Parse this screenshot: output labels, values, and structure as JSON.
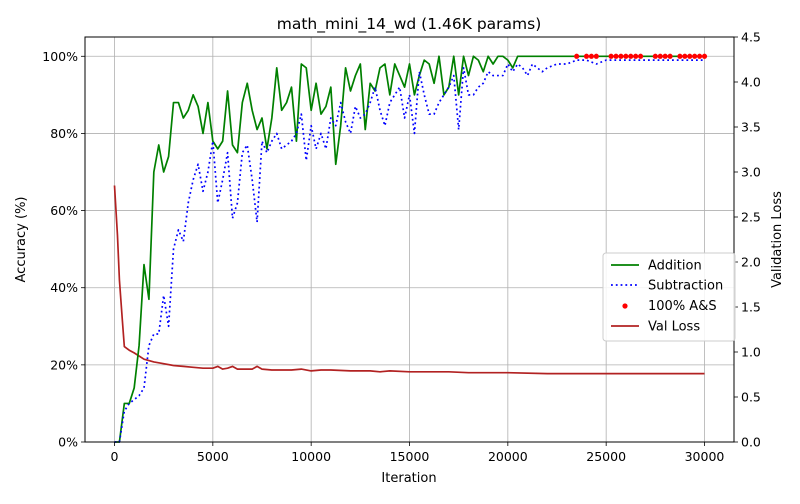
{
  "chart_data": {
    "type": "line",
    "title": "math_mini_14_wd (1.46K params)",
    "xlabel": "Iteration",
    "ylabel_left": "Accuracy (%)",
    "ylabel_right": "Validation Loss",
    "xlim": [
      -1500,
      31500
    ],
    "ylim_left": [
      0,
      105
    ],
    "ylim_right": [
      0,
      4.5
    ],
    "x_ticks": [
      0,
      5000,
      10000,
      15000,
      20000,
      25000,
      30000
    ],
    "x_tick_labels": [
      "0",
      "5000",
      "10000",
      "15000",
      "20000",
      "25000",
      "30000"
    ],
    "y_left_ticks": [
      0,
      20,
      40,
      60,
      80,
      100
    ],
    "y_left_tick_labels": [
      "0%",
      "20%",
      "40%",
      "60%",
      "80%",
      "100%"
    ],
    "y_right_ticks": [
      0,
      0.5,
      1.0,
      1.5,
      2.0,
      2.5,
      3.0,
      3.5,
      4.0,
      4.5
    ],
    "y_right_tick_labels": [
      "0.0",
      "0.5",
      "1.0",
      "1.5",
      "2.0",
      "2.5",
      "3.0",
      "3.5",
      "4.0",
      "4.5"
    ],
    "grid": true,
    "legend_position": "center-right",
    "series": [
      {
        "name": "Addition",
        "axis": "left",
        "style": "solid",
        "color": "#008000",
        "x": [
          0,
          250,
          500,
          750,
          1000,
          1250,
          1500,
          1750,
          2000,
          2250,
          2500,
          2750,
          3000,
          3250,
          3500,
          3750,
          4000,
          4250,
          4500,
          4750,
          5000,
          5250,
          5500,
          5750,
          6000,
          6250,
          6500,
          6750,
          7000,
          7250,
          7500,
          7750,
          8000,
          8250,
          8500,
          8750,
          9000,
          9250,
          9500,
          9750,
          10000,
          10250,
          10500,
          10750,
          11000,
          11250,
          11500,
          11750,
          12000,
          12250,
          12500,
          12750,
          13000,
          13250,
          13500,
          13750,
          14000,
          14250,
          14500,
          14750,
          15000,
          15250,
          15500,
          15750,
          16000,
          16250,
          16500,
          16750,
          17000,
          17250,
          17500,
          17750,
          18000,
          18250,
          18500,
          18750,
          19000,
          19250,
          19500,
          19750,
          20000,
          20250,
          20500,
          20750,
          21000,
          22000,
          23000,
          24000,
          25000,
          26000,
          27000,
          28000,
          29000,
          30000
        ],
        "values": [
          0,
          0,
          10,
          10,
          14,
          25,
          46,
          37,
          70,
          77,
          70,
          74,
          88,
          88,
          84,
          86,
          90,
          87,
          80,
          88,
          78,
          76,
          78,
          91,
          77,
          75,
          88,
          93,
          86,
          81,
          84,
          76,
          84,
          97,
          86,
          88,
          92,
          78,
          98,
          97,
          86,
          93,
          85,
          87,
          92,
          72,
          82,
          97,
          91,
          95,
          98,
          81,
          93,
          91,
          97,
          98,
          90,
          98,
          95,
          92,
          98,
          90,
          95,
          99,
          98,
          93,
          100,
          90,
          92,
          100,
          90,
          100,
          95,
          100,
          99,
          96,
          100,
          98,
          100,
          100,
          99,
          97,
          100,
          100,
          100,
          100,
          100,
          100,
          100,
          100,
          100,
          100,
          100,
          100
        ]
      },
      {
        "name": "Subtraction",
        "axis": "left",
        "style": "dotted",
        "color": "#0000ff",
        "x": [
          0,
          250,
          500,
          750,
          1000,
          1250,
          1500,
          1750,
          2000,
          2250,
          2500,
          2750,
          3000,
          3250,
          3500,
          3750,
          4000,
          4250,
          4500,
          4750,
          5000,
          5250,
          5500,
          5750,
          6000,
          6250,
          6500,
          6750,
          7000,
          7250,
          7500,
          7750,
          8000,
          8250,
          8500,
          8750,
          9000,
          9250,
          9500,
          9750,
          10000,
          10250,
          10500,
          10750,
          11000,
          11250,
          11500,
          11750,
          12000,
          12250,
          12500,
          12750,
          13000,
          13250,
          13500,
          13750,
          14000,
          14250,
          14500,
          14750,
          15000,
          15250,
          15500,
          15750,
          16000,
          16250,
          16500,
          16750,
          17000,
          17250,
          17500,
          17750,
          18000,
          18250,
          18500,
          18750,
          19000,
          19250,
          19500,
          19750,
          20000,
          20250,
          20500,
          20750,
          21000,
          21250,
          21500,
          21750,
          22000,
          22500,
          23000,
          23500,
          24000,
          24500,
          25000,
          25500,
          26000,
          26500,
          27000,
          27500,
          28000,
          28500,
          29000,
          29500,
          30000
        ],
        "values": [
          0,
          0,
          8,
          10,
          11,
          12,
          14,
          25,
          28,
          28,
          38,
          30,
          50,
          55,
          52,
          62,
          68,
          72,
          65,
          70,
          78,
          62,
          68,
          75,
          58,
          62,
          75,
          77,
          68,
          57,
          78,
          75,
          78,
          80,
          76,
          77,
          78,
          80,
          85,
          73,
          82,
          76,
          80,
          76,
          84,
          82,
          88,
          83,
          80,
          87,
          84,
          85,
          88,
          92,
          86,
          82,
          88,
          90,
          92,
          84,
          90,
          80,
          96,
          90,
          85,
          85,
          88,
          90,
          92,
          95,
          81,
          97,
          90,
          90,
          92,
          93,
          96,
          95,
          95,
          95,
          98,
          96,
          98,
          97,
          95,
          98,
          97,
          96,
          97,
          98,
          98,
          99,
          99,
          98,
          99,
          99,
          99,
          99,
          99,
          99,
          99,
          99,
          99,
          99,
          99
        ]
      },
      {
        "name": "100% A&S",
        "axis": "left",
        "style": "markers",
        "color": "#ff0000",
        "x": [
          23500,
          24000,
          24250,
          24500,
          25250,
          25500,
          25750,
          26000,
          26250,
          26500,
          26750,
          27500,
          27750,
          28000,
          28250,
          28750,
          29000,
          29250,
          29500,
          29750,
          30000
        ],
        "values": [
          100,
          100,
          100,
          100,
          100,
          100,
          100,
          100,
          100,
          100,
          100,
          100,
          100,
          100,
          100,
          100,
          100,
          100,
          100,
          100,
          100
        ]
      },
      {
        "name": "Val Loss",
        "axis": "right",
        "style": "solid",
        "color": "#b22222",
        "x": [
          0,
          150,
          250,
          400,
          500,
          750,
          1000,
          1500,
          2000,
          2500,
          3000,
          3500,
          4000,
          4500,
          5000,
          5250,
          5500,
          5750,
          6000,
          6250,
          6500,
          7000,
          7250,
          7500,
          8000,
          9000,
          9500,
          10000,
          10500,
          11000,
          12000,
          13000,
          13500,
          14000,
          15000,
          15500,
          16000,
          17000,
          18000,
          19000,
          20000,
          22000,
          24000,
          26000,
          28000,
          30000
        ],
        "values": [
          2.85,
          2.3,
          1.8,
          1.35,
          1.06,
          1.02,
          0.99,
          0.92,
          0.89,
          0.87,
          0.85,
          0.84,
          0.83,
          0.82,
          0.82,
          0.84,
          0.81,
          0.82,
          0.84,
          0.81,
          0.81,
          0.81,
          0.84,
          0.81,
          0.8,
          0.8,
          0.81,
          0.79,
          0.8,
          0.8,
          0.79,
          0.79,
          0.78,
          0.79,
          0.78,
          0.78,
          0.78,
          0.78,
          0.77,
          0.77,
          0.77,
          0.76,
          0.76,
          0.76,
          0.76,
          0.76
        ]
      }
    ]
  }
}
